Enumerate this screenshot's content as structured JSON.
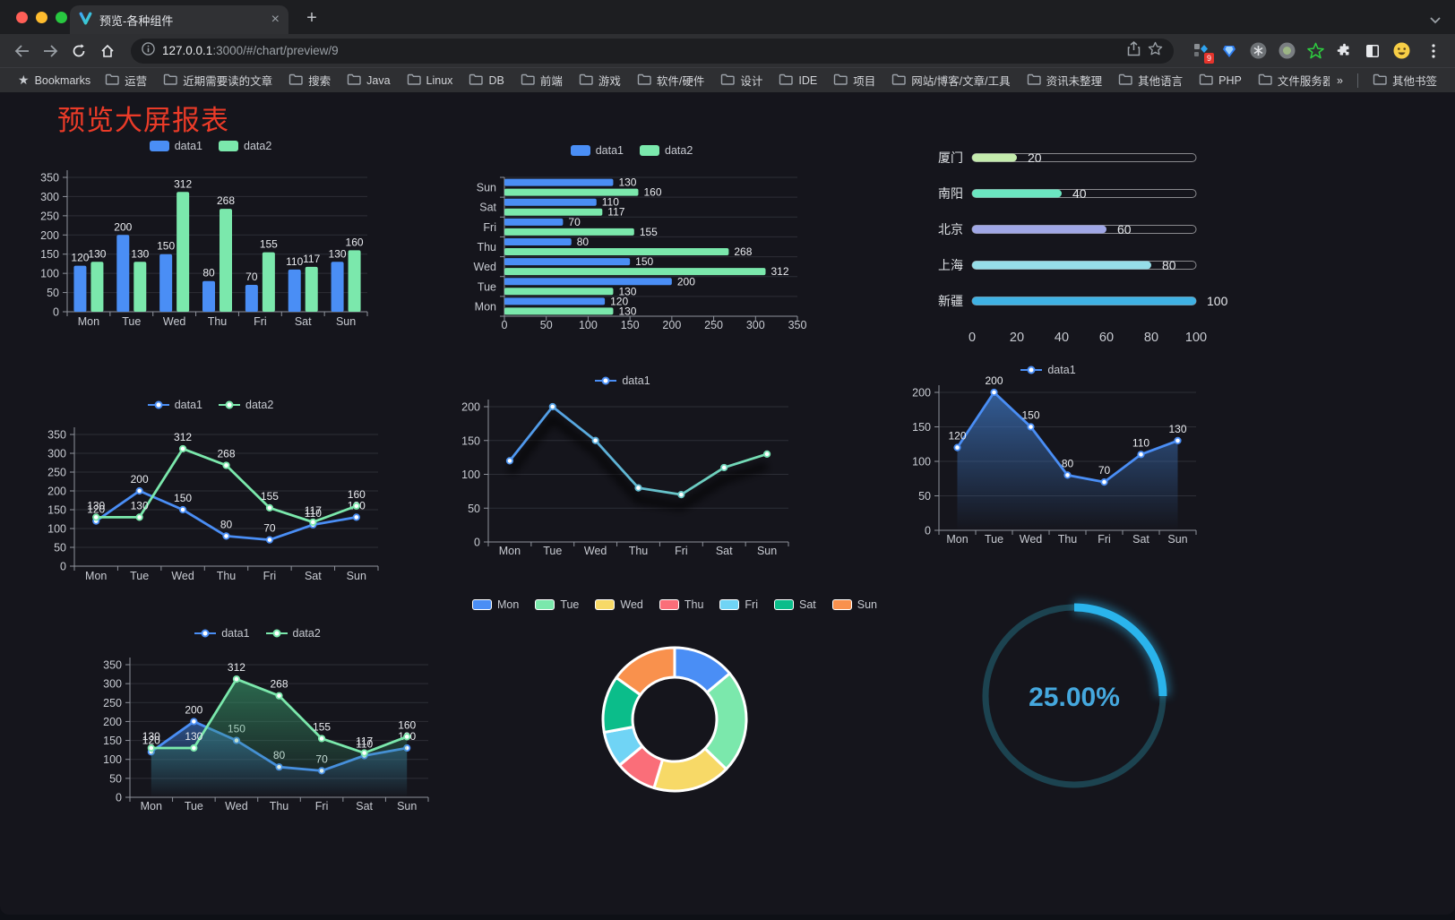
{
  "browser": {
    "traffic_lights": [
      "#ff5f57",
      "#febc2e",
      "#28c840"
    ],
    "tab": {
      "title": "预览-各种组件",
      "close_glyph": "×",
      "new_tab_glyph": "+"
    },
    "url": {
      "host": "127.0.0.1",
      "rest": ":3000/#/chart/preview/9"
    },
    "extension_badge": "9"
  },
  "bookmarks_bar": {
    "root_label": "Bookmarks",
    "folders": [
      "运营",
      "近期需要读的文章",
      "搜索",
      "Java",
      "Linux",
      "DB",
      "前端",
      "游戏",
      "软件/硬件",
      "设计",
      "IDE",
      "项目",
      "网站/博客/文章/工具",
      "资讯未整理",
      "其他语言",
      "PHP",
      "文件服务器"
    ],
    "overflow_label": "»",
    "other_label": "其他书签"
  },
  "page": {
    "title": "预览大屏报表",
    "title_color": "#ea3b28"
  },
  "palette": {
    "data1": "#4a8ef5",
    "data2": "#7be8ac"
  },
  "chart_data": [
    {
      "id": "bar-grouped",
      "type": "bar",
      "categories": [
        "Mon",
        "Tue",
        "Wed",
        "Thu",
        "Fri",
        "Sat",
        "Sun"
      ],
      "series": [
        {
          "name": "data1",
          "color": "#4a8ef5",
          "values": [
            120,
            200,
            150,
            80,
            70,
            110,
            130
          ]
        },
        {
          "name": "data2",
          "color": "#7be8ac",
          "values": [
            130,
            130,
            312,
            268,
            155,
            117,
            160
          ]
        }
      ],
      "ylim": [
        0,
        350
      ],
      "ystep": 50,
      "legend_position": "top",
      "value_labels": true,
      "grid": true
    },
    {
      "id": "bar-horizontal",
      "type": "bar-horizontal",
      "categories": [
        "Mon",
        "Tue",
        "Wed",
        "Thu",
        "Fri",
        "Sat",
        "Sun"
      ],
      "categories_order": "bottom-up",
      "series": [
        {
          "name": "data1",
          "color": "#4a8ef5",
          "values": [
            120,
            200,
            150,
            80,
            70,
            110,
            130
          ]
        },
        {
          "name": "data2",
          "color": "#7be8ac",
          "values": [
            130,
            130,
            312,
            268,
            155,
            117,
            160
          ]
        }
      ],
      "xlim": [
        0,
        350
      ],
      "xstep": 50,
      "legend_position": "top",
      "value_labels": true,
      "grid": true
    },
    {
      "id": "progress",
      "type": "progress",
      "items": [
        {
          "label": "厦门",
          "value": 20,
          "color": "#c4ebad"
        },
        {
          "label": "南阳",
          "value": 40,
          "color": "#6be6c1"
        },
        {
          "label": "北京",
          "value": 60,
          "color": "#a0a7e6"
        },
        {
          "label": "上海",
          "value": 80,
          "color": "#96dee8"
        },
        {
          "label": "新疆",
          "value": 100,
          "color": "#3fb1e3"
        }
      ],
      "xlim": [
        0,
        100
      ],
      "xticks": [
        0,
        20,
        40,
        60,
        80,
        100
      ]
    },
    {
      "id": "line-basic",
      "type": "line",
      "categories": [
        "Mon",
        "Tue",
        "Wed",
        "Thu",
        "Fri",
        "Sat",
        "Sun"
      ],
      "series": [
        {
          "name": "data1",
          "color": "#4a8ef5",
          "values": [
            120,
            200,
            150,
            80,
            70,
            110,
            130
          ]
        },
        {
          "name": "data2",
          "color": "#7be8ac",
          "values": [
            130,
            130,
            312,
            268,
            155,
            117,
            160
          ]
        }
      ],
      "ylim": [
        0,
        350
      ],
      "ystep": 50,
      "legend_position": "top",
      "value_labels": true,
      "markers": true,
      "grid": true
    },
    {
      "id": "line-gradient",
      "type": "line",
      "categories": [
        "Mon",
        "Tue",
        "Wed",
        "Thu",
        "Fri",
        "Sat",
        "Sun"
      ],
      "series": [
        {
          "name": "data1",
          "gradient": [
            "#4a8ef5",
            "#7be8ac"
          ],
          "values": [
            120,
            200,
            150,
            80,
            70,
            110,
            130
          ]
        }
      ],
      "ylim": [
        0,
        200
      ],
      "ystep": 50,
      "legend_position": "top",
      "value_labels": false,
      "markers": true,
      "shadow": true,
      "grid": true
    },
    {
      "id": "line-area",
      "type": "line",
      "categories": [
        "Mon",
        "Tue",
        "Wed",
        "Thu",
        "Fri",
        "Sat",
        "Sun"
      ],
      "series": [
        {
          "name": "data1",
          "color": "#4a8ef5",
          "area": [
            "rgba(58,110,180,0.8)",
            "rgba(58,110,180,0)"
          ],
          "values": [
            120,
            200,
            150,
            80,
            70,
            110,
            130
          ]
        }
      ],
      "ylim": [
        0,
        200
      ],
      "ystep": 50,
      "legend_position": "top",
      "value_labels": true,
      "markers": true,
      "grid": true
    },
    {
      "id": "line-area-double",
      "type": "line",
      "categories": [
        "Mon",
        "Tue",
        "Wed",
        "Thu",
        "Fri",
        "Sat",
        "Sun"
      ],
      "series": [
        {
          "name": "data1",
          "color": "#4a8ef5",
          "area": [
            "rgba(52,100,170,0.75)",
            "rgba(52,100,170,0)"
          ],
          "values": [
            120,
            200,
            150,
            80,
            70,
            110,
            130
          ]
        },
        {
          "name": "data2",
          "color": "#7be8ac",
          "area": [
            "rgba(55,150,105,0.65)",
            "rgba(55,150,105,0)"
          ],
          "values": [
            130,
            130,
            312,
            268,
            155,
            117,
            160
          ]
        }
      ],
      "ylim": [
        0,
        350
      ],
      "ystep": 50,
      "legend_position": "top",
      "value_labels": true,
      "markers": true,
      "grid": true
    },
    {
      "id": "pie-donut",
      "type": "pie",
      "legend_position": "top",
      "slices": [
        {
          "label": "Mon",
          "value": 120,
          "color": "#4a8ef5"
        },
        {
          "label": "Tue",
          "value": 200,
          "color": "#7be8ac"
        },
        {
          "label": "Wed",
          "value": 150,
          "color": "#f7d967"
        },
        {
          "label": "Thu",
          "value": 80,
          "color": "#fa6e79"
        },
        {
          "label": "Fri",
          "value": 70,
          "color": "#70d4f5"
        },
        {
          "label": "Sat",
          "value": 110,
          "color": "#0bbd8a"
        },
        {
          "label": "Sun",
          "value": 130,
          "color": "#f9914d"
        }
      ],
      "donut": true,
      "border_color": "#ffffff",
      "start_angle": 90
    },
    {
      "id": "gauge",
      "type": "gauge",
      "value": 25,
      "max": 100,
      "display": "25.00%",
      "color": "#2ab4ec",
      "track_color": "#1c4350",
      "text_color": "#45a8de"
    }
  ]
}
